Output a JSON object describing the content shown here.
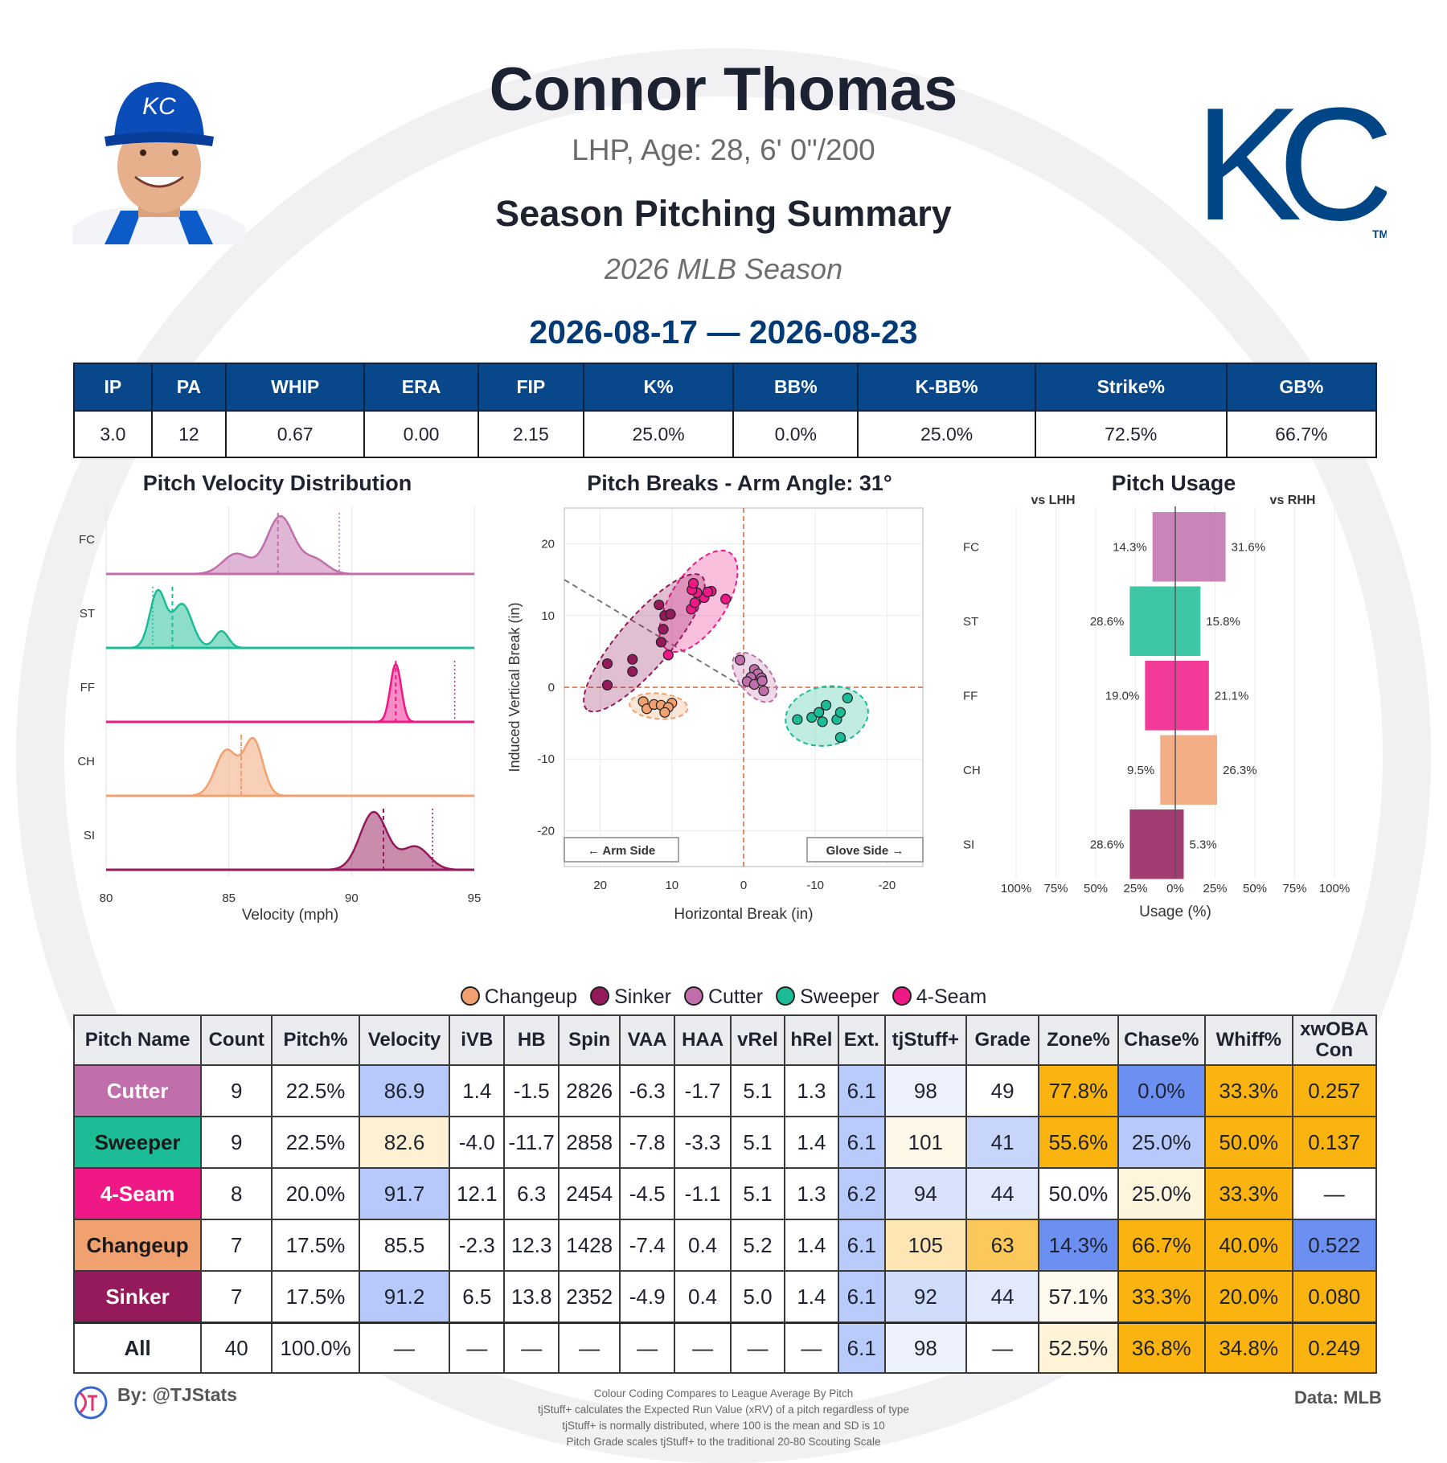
{
  "header": {
    "name": "Connor Thomas",
    "bio": "LHP, Age: 28, 6' 0\"/200",
    "summary_title": "Season Pitching Summary",
    "season": "2026 MLB Season",
    "date_range": "2026-08-17 — 2026-08-23",
    "team_logo_text": "KC",
    "team_logo_tm": "TM",
    "cap_logo_text": "KC"
  },
  "stat_line": {
    "headers": [
      "IP",
      "PA",
      "WHIP",
      "ERA",
      "FIP",
      "K%",
      "BB%",
      "K-BB%",
      "Strike%",
      "GB%"
    ],
    "values": [
      "3.0",
      "12",
      "0.67",
      "0.00",
      "2.15",
      "25.0%",
      "0.0%",
      "25.0%",
      "72.5%",
      "66.7%"
    ]
  },
  "colors": {
    "Cutter": "#c06fac",
    "Sweeper": "#1cbc97",
    "4-Seam": "#f01887",
    "Changeup": "#f1a070",
    "Sinker": "#941a5c",
    "header_blue": "#07478a",
    "cell_high": "#fbb30f",
    "cell_low": "#6c8ff2"
  },
  "chart_data": [
    {
      "type": "area",
      "title": "Pitch Velocity Distribution",
      "xlabel": "Velocity (mph)",
      "xlim": [
        80,
        95
      ],
      "x_ticks": [
        "80",
        "85",
        "90",
        "95"
      ],
      "series": [
        {
          "name": "FC",
          "mean": 87.0,
          "league_avg": 89.5,
          "peaks": [
            {
              "mu": 85.3,
              "sigma": 0.55,
              "h": 0.35
            },
            {
              "mu": 87.1,
              "sigma": 0.55,
              "h": 1.0
            },
            {
              "mu": 88.5,
              "sigma": 0.5,
              "h": 0.25
            }
          ]
        },
        {
          "name": "ST",
          "mean": 82.7,
          "league_avg": 81.9,
          "peaks": [
            {
              "mu": 82.1,
              "sigma": 0.32,
              "h": 1.0
            },
            {
              "mu": 83.1,
              "sigma": 0.4,
              "h": 0.78
            },
            {
              "mu": 84.7,
              "sigma": 0.28,
              "h": 0.3
            }
          ]
        },
        {
          "name": "FF",
          "mean": 91.8,
          "league_avg": 94.2,
          "peaks": [
            {
              "mu": 91.8,
              "sigma": 0.22,
              "h": 1.0
            }
          ]
        },
        {
          "name": "CH",
          "mean": 85.5,
          "league_avg": 85.5,
          "peaks": [
            {
              "mu": 84.9,
              "sigma": 0.45,
              "h": 0.82
            },
            {
              "mu": 86.0,
              "sigma": 0.38,
              "h": 1.0
            }
          ]
        },
        {
          "name": "SI",
          "mean": 91.3,
          "league_avg": 93.3,
          "peaks": [
            {
              "mu": 90.9,
              "sigma": 0.55,
              "h": 1.0
            },
            {
              "mu": 92.6,
              "sigma": 0.55,
              "h": 0.4
            }
          ]
        }
      ]
    },
    {
      "type": "scatter",
      "title": "Pitch Breaks - Arm Angle: 31°",
      "xlabel": "Horizontal Break (in)",
      "ylabel": "Induced Vertical Break (in)",
      "xlim": [
        25,
        -25
      ],
      "ylim": [
        -25,
        25
      ],
      "x_ticks": [
        20,
        10,
        0,
        -10,
        -20
      ],
      "y_ticks": [
        20,
        10,
        0,
        -10,
        -20
      ],
      "arm_side_label": "← Arm Side",
      "glove_side_label": "Glove Side →",
      "series": [
        {
          "name": "4-Seam",
          "points": [
            [
              5.5,
              12.5
            ],
            [
              6.5,
              13.2
            ],
            [
              7.2,
              13.6
            ],
            [
              7.0,
              14.5
            ],
            [
              4.5,
              13.4
            ],
            [
              5.0,
              13.3
            ],
            [
              2.5,
              12.3
            ],
            [
              7.3,
              10.9
            ],
            [
              6.8,
              11.8
            ],
            [
              10.5,
              4.5
            ]
          ]
        },
        {
          "name": "Sinker",
          "points": [
            [
              19.0,
              3.3
            ],
            [
              19.0,
              0.3
            ],
            [
              15.5,
              3.9
            ],
            [
              15.5,
              2.2
            ],
            [
              11.5,
              6.3
            ],
            [
              11.2,
              8.1
            ],
            [
              11.0,
              10.0
            ],
            [
              11.8,
              11.5
            ],
            [
              10.2,
              10.2
            ]
          ]
        },
        {
          "name": "Cutter",
          "points": [
            [
              0.5,
              3.8
            ],
            [
              -1.5,
              2.5
            ],
            [
              -2.0,
              1.9
            ],
            [
              -1.0,
              1.4
            ],
            [
              -2.5,
              1.3
            ],
            [
              -0.5,
              0.8
            ],
            [
              -1.5,
              0.4
            ],
            [
              -2.6,
              0.9
            ],
            [
              -2.8,
              -0.5
            ]
          ]
        },
        {
          "name": "Changeup",
          "points": [
            [
              14.0,
              -2.0
            ],
            [
              13.5,
              -3.0
            ],
            [
              12.5,
              -2.4
            ],
            [
              11.5,
              -2.5
            ],
            [
              10.0,
              -2.2
            ],
            [
              10.5,
              -2.8
            ],
            [
              11.0,
              -3.5
            ]
          ]
        },
        {
          "name": "Sweeper",
          "points": [
            [
              -7.5,
              -4.5
            ],
            [
              -9.5,
              -4.2
            ],
            [
              -11.0,
              -4.8
            ],
            [
              -10.5,
              -3.5
            ],
            [
              -11.5,
              -2.5
            ],
            [
              -13.0,
              -4.5
            ],
            [
              -13.5,
              -3.5
            ],
            [
              -14.5,
              -1.5
            ],
            [
              -13.5,
              -7.0
            ]
          ]
        }
      ]
    },
    {
      "type": "bar",
      "title": "Pitch Usage",
      "xlabel": "Usage (%)",
      "left_label": "vs LHH",
      "right_label": "vs RHH",
      "categories": [
        "FC",
        "ST",
        "FF",
        "CH",
        "SI"
      ],
      "x_ticks": [
        "100%",
        "75%",
        "50%",
        "25%",
        "0%",
        "25%",
        "50%",
        "75%",
        "100%"
      ],
      "series": [
        {
          "name": "vs LHH",
          "values": [
            14.3,
            28.6,
            19.0,
            9.5,
            28.6
          ],
          "labels": [
            "14.3%",
            "28.6%",
            "19.0%",
            "9.5%",
            "28.6%"
          ]
        },
        {
          "name": "vs RHH",
          "values": [
            31.6,
            15.8,
            21.1,
            26.3,
            5.3
          ],
          "labels": [
            "31.6%",
            "15.8%",
            "21.1%",
            "26.3%",
            "5.3%"
          ]
        }
      ]
    }
  ],
  "legend": [
    "Changeup",
    "Sinker",
    "Cutter",
    "Sweeper",
    "4-Seam"
  ],
  "pitch_table": {
    "headers": [
      "Pitch Name",
      "Count",
      "Pitch%",
      "Velocity",
      "iVB",
      "HB",
      "Spin",
      "VAA",
      "HAA",
      "vRel",
      "hRel",
      "Ext.",
      "tjStuff+",
      "Grade",
      "Zone%",
      "Chase%",
      "Whiff%",
      "xwOBA Con"
    ],
    "rows": [
      {
        "name": "Cutter",
        "text": "#ffffff",
        "cells": [
          "9",
          "22.5%",
          "86.9",
          "1.4",
          "-1.5",
          "2826",
          "-6.3",
          "-1.7",
          "5.1",
          "1.3",
          "6.1",
          "98",
          "49",
          "77.8%",
          "0.0%",
          "33.3%",
          "0.257"
        ],
        "bg": [
          "#ffffff",
          "#ffffff",
          "#b7c8fb",
          "#ffffff",
          "#ffffff",
          "#ffffff",
          "#ffffff",
          "#ffffff",
          "#ffffff",
          "#ffffff",
          "#b9cbfa",
          "#eef2fd",
          "#ffffff",
          "#fbb30f",
          "#6c8ff2",
          "#fbb30f",
          "#fbb30f"
        ]
      },
      {
        "name": "Sweeper",
        "text": "#1a1a1a",
        "cells": [
          "9",
          "22.5%",
          "82.6",
          "-4.0",
          "-11.7",
          "2858",
          "-7.8",
          "-3.3",
          "5.1",
          "1.4",
          "6.1",
          "101",
          "41",
          "55.6%",
          "25.0%",
          "50.0%",
          "0.137"
        ],
        "bg": [
          "#ffffff",
          "#ffffff",
          "#fef0d2",
          "#ffffff",
          "#ffffff",
          "#ffffff",
          "#ffffff",
          "#ffffff",
          "#ffffff",
          "#ffffff",
          "#b9cbfa",
          "#fef8e9",
          "#c7d5fb",
          "#fbb30f",
          "#b7c8fb",
          "#fbb30f",
          "#fbb30f"
        ]
      },
      {
        "name": "4-Seam",
        "text": "#ffffff",
        "cells": [
          "8",
          "20.0%",
          "91.7",
          "12.1",
          "6.3",
          "2454",
          "-4.5",
          "-1.1",
          "5.1",
          "1.3",
          "6.2",
          "94",
          "44",
          "50.0%",
          "25.0%",
          "33.3%",
          "—"
        ],
        "bg": [
          "#ffffff",
          "#ffffff",
          "#b7c8fb",
          "#ffffff",
          "#ffffff",
          "#ffffff",
          "#ffffff",
          "#ffffff",
          "#ffffff",
          "#ffffff",
          "#b9cbfa",
          "#d9e2fc",
          "#e3e9fc",
          "#ffffff",
          "#fff5dc",
          "#fbb30f",
          "#ffffff"
        ]
      },
      {
        "name": "Changeup",
        "text": "#1a1a1a",
        "cells": [
          "7",
          "17.5%",
          "85.5",
          "-2.3",
          "12.3",
          "1428",
          "-7.4",
          "0.4",
          "5.2",
          "1.4",
          "6.1",
          "105",
          "63",
          "14.3%",
          "66.7%",
          "40.0%",
          "0.522"
        ],
        "bg": [
          "#ffffff",
          "#ffffff",
          "#ffffff",
          "#ffffff",
          "#ffffff",
          "#ffffff",
          "#ffffff",
          "#ffffff",
          "#ffffff",
          "#ffffff",
          "#b9cbfa",
          "#fde6b4",
          "#fcc85a",
          "#6c8ff2",
          "#fbb30f",
          "#fbb30f",
          "#6c8ff2"
        ]
      },
      {
        "name": "Sinker",
        "text": "#ffffff",
        "cells": [
          "7",
          "17.5%",
          "91.2",
          "6.5",
          "13.8",
          "2352",
          "-4.9",
          "0.4",
          "5.0",
          "1.4",
          "6.1",
          "92",
          "44",
          "57.1%",
          "33.3%",
          "20.0%",
          "0.080"
        ],
        "bg": [
          "#ffffff",
          "#ffffff",
          "#b7c8fb",
          "#ffffff",
          "#ffffff",
          "#ffffff",
          "#ffffff",
          "#ffffff",
          "#ffffff",
          "#ffffff",
          "#b9cbfa",
          "#cfdbfb",
          "#e3e9fc",
          "#fffaee",
          "#fbb30f",
          "#fbb30f",
          "#fbb30f"
        ]
      }
    ],
    "all_row": {
      "name": "All",
      "cells": [
        "40",
        "100.0%",
        "—",
        "—",
        "—",
        "—",
        "—",
        "—",
        "—",
        "—",
        "6.1",
        "98",
        "—",
        "52.5%",
        "36.8%",
        "34.8%",
        "0.249"
      ],
      "bg": [
        "#ffffff",
        "#ffffff",
        "#ffffff",
        "#ffffff",
        "#ffffff",
        "#ffffff",
        "#ffffff",
        "#ffffff",
        "#ffffff",
        "#ffffff",
        "#b9cbfa",
        "#eef2fd",
        "#ffffff",
        "#fef3d6",
        "#fbb30f",
        "#fbb30f",
        "#fbb30f"
      ]
    }
  },
  "footer": {
    "byline": "By: @TJStats",
    "data_source": "Data: MLB",
    "notes": [
      "Colour Coding Compares to League Average By Pitch",
      "tjStuff+ calculates the Expected Run Value (xRV) of a pitch regardless of type",
      "tjStuff+ is normally distributed, where 100 is the mean and SD is 10",
      "Pitch Grade scales tjStuff+ to the traditional 20-80 Scouting Scale"
    ]
  }
}
